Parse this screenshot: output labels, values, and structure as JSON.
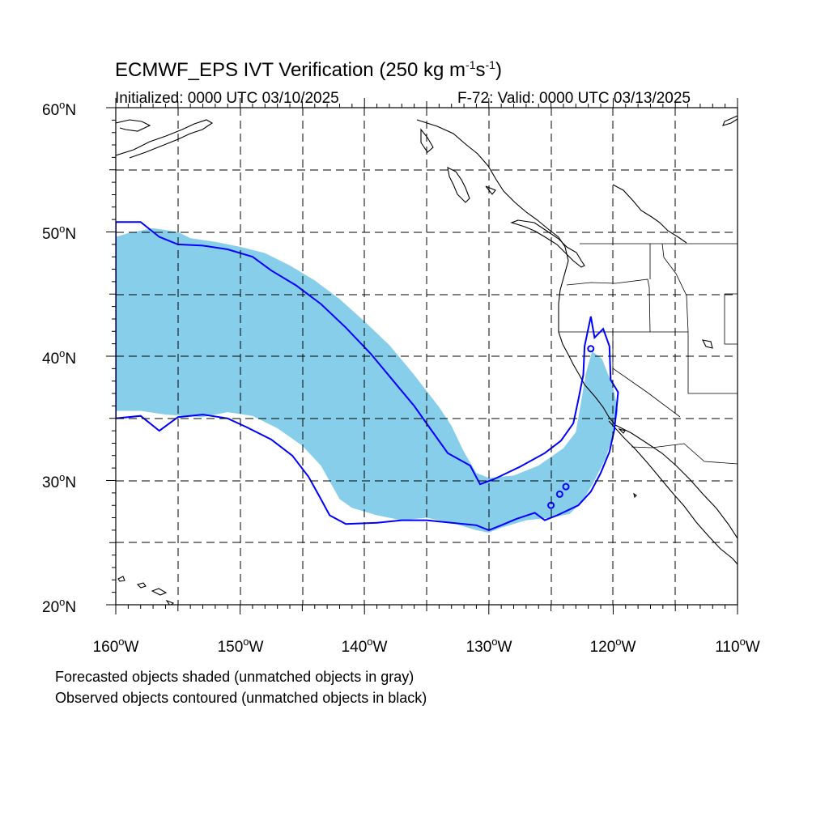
{
  "title": {
    "main": "ECMWF_EPS IVT Verification (250 kg m",
    "sup1": "-1",
    "mid": "s",
    "sup2": "-1",
    "end": ")"
  },
  "subtitle_left": "Initialized: 0000 UTC 03/10/2025",
  "subtitle_right": "F-72: Valid: 0000 UTC 03/13/2025",
  "lat_labels": [
    "60",
    "50",
    "40",
    "30",
    "20"
  ],
  "lon_labels": [
    "160",
    "150",
    "140",
    "130",
    "120",
    "110"
  ],
  "degree_symbol": "o",
  "lat_hemi": "N",
  "lon_hemi": "W",
  "notes": [
    "Forecasted objects shaded (unmatched objects in gray)",
    "Observed objects contoured (unmatched objects in black)"
  ],
  "colors": {
    "forecast_fill": "#87ceeb",
    "observed_contour": "#0000ff",
    "coastline": "#000000",
    "grid": "#000000"
  },
  "map_data": {
    "projection": "cylindrical equidistant",
    "lon_range": [
      -160,
      -110
    ],
    "lat_range": [
      20,
      60
    ],
    "grid_dashed": true,
    "grid_lon_step": 5,
    "grid_lat_step": 5,
    "forecast_object": [
      [
        -160,
        49.6
      ],
      [
        -159,
        49.9
      ],
      [
        -157,
        50.3
      ],
      [
        -155,
        50.0
      ],
      [
        -154,
        49.5
      ],
      [
        -152,
        49.2
      ],
      [
        -150,
        48.8
      ],
      [
        -148,
        48.3
      ],
      [
        -146,
        47.3
      ],
      [
        -144,
        46.1
      ],
      [
        -142,
        44.6
      ],
      [
        -140,
        42.8
      ],
      [
        -138,
        40.9
      ],
      [
        -136,
        38.5
      ],
      [
        -134,
        35.9
      ],
      [
        -133,
        34.4
      ],
      [
        -132,
        32.3
      ],
      [
        -131,
        30.6
      ],
      [
        -130,
        30.2
      ],
      [
        -128,
        30.4
      ],
      [
        -126,
        31.2
      ],
      [
        -124,
        32.6
      ],
      [
        -123,
        33.9
      ],
      [
        -122.6,
        36.2
      ],
      [
        -122.2,
        38.6
      ],
      [
        -121.7,
        40.4
      ],
      [
        -120.9,
        39.8
      ],
      [
        -120,
        37.5
      ],
      [
        -119.6,
        35.6
      ],
      [
        -120,
        33.7
      ],
      [
        -120.6,
        31.8
      ],
      [
        -121.6,
        29.8
      ],
      [
        -122.5,
        28.3
      ],
      [
        -123.5,
        27.3
      ],
      [
        -125,
        27.0
      ],
      [
        -127,
        26.8
      ],
      [
        -129,
        26.2
      ],
      [
        -130,
        25.8
      ],
      [
        -131,
        26.0
      ],
      [
        -133,
        26.6
      ],
      [
        -135,
        27.0
      ],
      [
        -137,
        26.8
      ],
      [
        -139,
        27.2
      ],
      [
        -141,
        27.8
      ],
      [
        -142,
        28.5
      ],
      [
        -143.5,
        31.2
      ],
      [
        -145,
        32.8
      ],
      [
        -147,
        34.2
      ],
      [
        -149,
        35.2
      ],
      [
        -151,
        35.5
      ],
      [
        -153,
        35.1
      ],
      [
        -156,
        35.3
      ],
      [
        -158,
        35.6
      ],
      [
        -160,
        35.6
      ]
    ],
    "observed_contour": [
      [
        -160,
        50.8
      ],
      [
        -158,
        50.8
      ],
      [
        -156.5,
        49.6
      ],
      [
        -155,
        49.0
      ],
      [
        -153,
        48.9
      ],
      [
        -151,
        48.6
      ],
      [
        -149,
        48.0
      ],
      [
        -147.5,
        46.9
      ],
      [
        -145.5,
        45.7
      ],
      [
        -143.5,
        44.2
      ],
      [
        -141.5,
        42.3
      ],
      [
        -139.5,
        40.2
      ],
      [
        -137.5,
        37.8
      ],
      [
        -136,
        36.0
      ],
      [
        -134.8,
        34.3
      ],
      [
        -133.3,
        32.2
      ],
      [
        -131.5,
        31.2
      ],
      [
        -130.7,
        29.7
      ],
      [
        -129.6,
        30.1
      ],
      [
        -127.5,
        31.1
      ],
      [
        -125.5,
        32.2
      ],
      [
        -124.2,
        33.2
      ],
      [
        -123.2,
        34.6
      ],
      [
        -122.8,
        36.5
      ],
      [
        -122.4,
        38.5
      ],
      [
        -122.3,
        40.8
      ],
      [
        -121.8,
        43.2
      ],
      [
        -121.5,
        41.5
      ],
      [
        -120.8,
        42.2
      ],
      [
        -120.3,
        40.8
      ],
      [
        -120.2,
        38.1
      ],
      [
        -119.6,
        37.1
      ],
      [
        -119.9,
        34.1
      ],
      [
        -120.3,
        32.3
      ],
      [
        -121.0,
        30.6
      ],
      [
        -121.8,
        29.1
      ],
      [
        -122.8,
        28.0
      ],
      [
        -124.5,
        27.2
      ],
      [
        -125.5,
        26.8
      ],
      [
        -126.3,
        27.4
      ],
      [
        -127.8,
        26.9
      ],
      [
        -129.0,
        26.4
      ],
      [
        -130.0,
        26.0
      ],
      [
        -131.0,
        26.4
      ],
      [
        -133.0,
        26.6
      ],
      [
        -135.0,
        26.8
      ],
      [
        -137.0,
        26.8
      ],
      [
        -139.0,
        26.6
      ],
      [
        -141.5,
        26.5
      ],
      [
        -142.8,
        27.2
      ],
      [
        -143.5,
        28.5
      ],
      [
        -144.5,
        30.3
      ],
      [
        -145.8,
        32.0
      ],
      [
        -147.5,
        33.3
      ],
      [
        -149.5,
        34.3
      ],
      [
        -151,
        35.0
      ],
      [
        -153,
        35.3
      ],
      [
        -155,
        35.1
      ],
      [
        -156.5,
        34.0
      ],
      [
        -158,
        35.2
      ],
      [
        -160,
        35.0
      ]
    ],
    "observed_small": [
      [
        -121.8,
        40.6
      ],
      [
        -125.0,
        28.0
      ],
      [
        -124.3,
        28.9
      ],
      [
        -123.8,
        29.5
      ]
    ]
  }
}
